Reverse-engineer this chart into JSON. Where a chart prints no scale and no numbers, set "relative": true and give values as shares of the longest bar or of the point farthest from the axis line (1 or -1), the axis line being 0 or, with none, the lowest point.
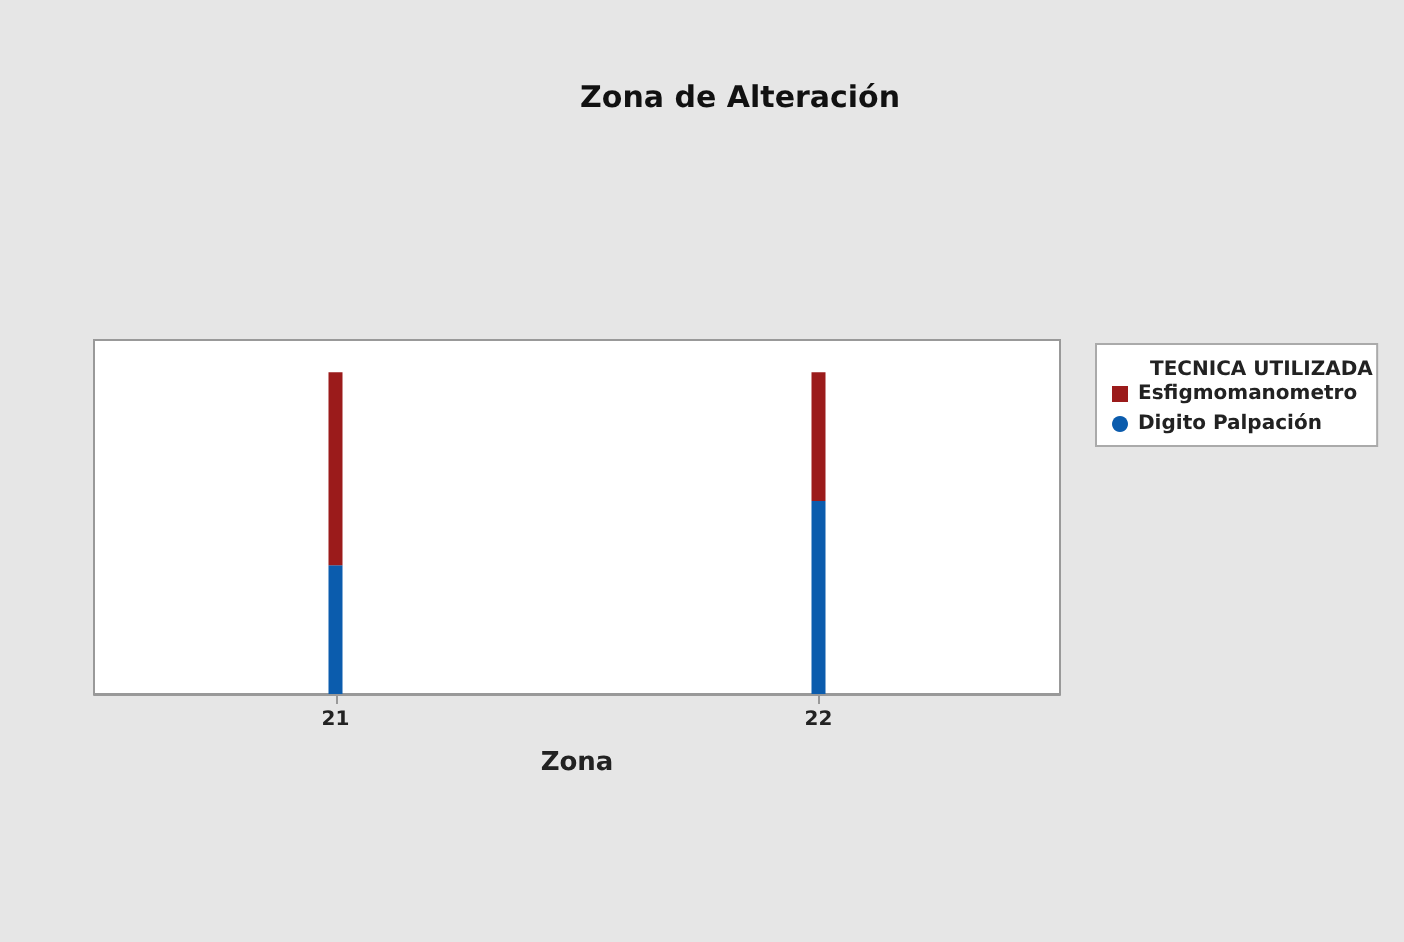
{
  "chart_data": {
    "type": "bar",
    "title": "Zona de Alteración",
    "xlabel": "Zona",
    "legend_title": "TECNICA UTILIZADA",
    "categories": [
      "21",
      "22"
    ],
    "stacked": true,
    "relative": true,
    "tick_labels": "x",
    "grid": false,
    "legend": "right",
    "series": [
      {
        "name": "Digito Palpación",
        "color": "#0b5cad",
        "marker": "circle",
        "values": [
          0.4,
          0.6
        ]
      },
      {
        "name": "Esfigmomanometro",
        "color": "#9b1b1b",
        "marker": "square",
        "values": [
          0.6,
          0.4
        ]
      }
    ]
  }
}
